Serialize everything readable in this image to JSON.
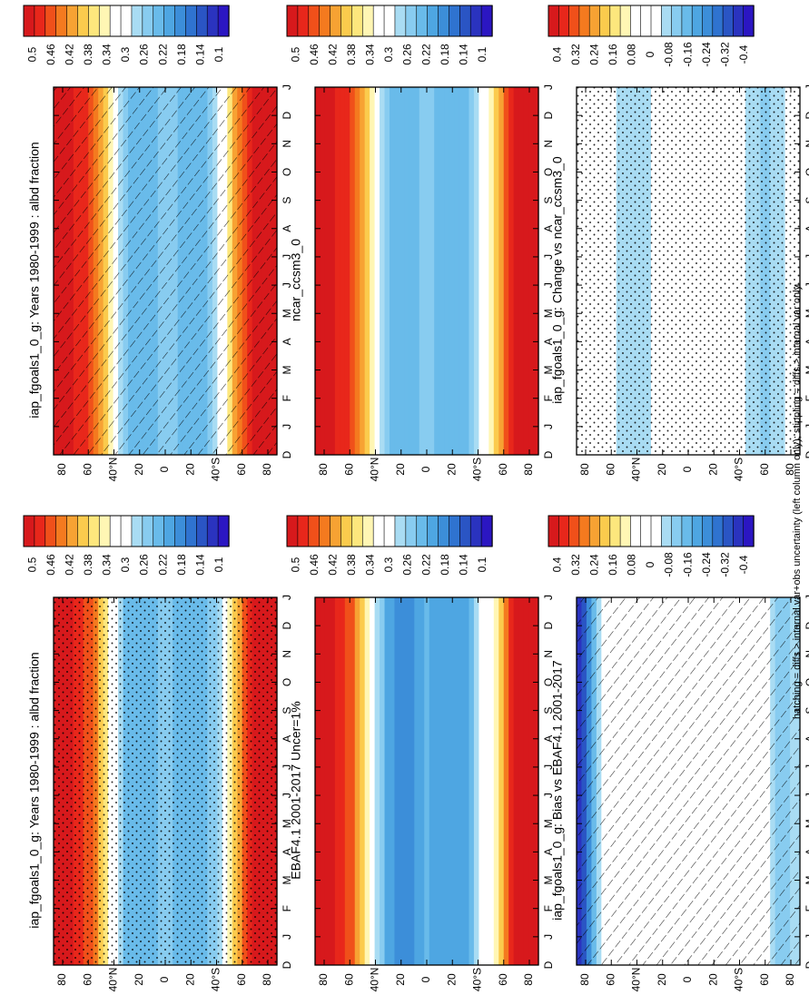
{
  "figure": {
    "footnote": "hatching = diffs > internal var+obs uncertainty (left column only); stippling = diffs > internal var only"
  },
  "chart_data": [
    {
      "id": "model-mean",
      "type": "heatmap",
      "title": "iap_fgoals1_0_g: Years 1980-1999 : albd fraction",
      "x_categories": [
        "D",
        "J",
        "F",
        "M",
        "A",
        "M",
        "J",
        "J",
        "A",
        "S",
        "O",
        "N",
        "D",
        "J"
      ],
      "y_tick_labels": [
        "80",
        "60",
        "40°N",
        "20",
        "0",
        "20",
        "40°S",
        "60",
        "80"
      ],
      "y_range": [
        -90,
        90
      ],
      "colorbar_labels": [
        "0.5",
        "0.46",
        "0.42",
        "0.38",
        "0.34",
        "0.3",
        "0.26",
        "0.22",
        "0.18",
        "0.14",
        "0.1"
      ],
      "colorbar_range": [
        0.08,
        0.52
      ],
      "overlay": "hatching",
      "latitude_profile": [
        [
          -90,
          0.5
        ],
        [
          -70,
          0.5
        ],
        [
          -55,
          0.4
        ],
        [
          -45,
          0.3
        ],
        [
          -30,
          0.22
        ],
        [
          -10,
          0.24
        ],
        [
          0,
          0.26
        ],
        [
          15,
          0.22
        ],
        [
          30,
          0.24
        ],
        [
          45,
          0.36
        ],
        [
          60,
          0.47
        ],
        [
          75,
          0.5
        ],
        [
          90,
          0.5
        ]
      ]
    },
    {
      "id": "model-mean-2",
      "type": "heatmap",
      "title": "iap_fgoals1_0_g: Years 1980-1999 : albd fraction",
      "x_categories": [
        "D",
        "J",
        "F",
        "M",
        "A",
        "M",
        "J",
        "J",
        "A",
        "S",
        "O",
        "N",
        "D",
        "J"
      ],
      "y_tick_labels": [
        "80",
        "60",
        "40°N",
        "20",
        "0",
        "20",
        "40°S",
        "60",
        "80"
      ],
      "y_range": [
        -90,
        90
      ],
      "colorbar_labels": [
        "0.5",
        "0.46",
        "0.42",
        "0.38",
        "0.34",
        "0.3",
        "0.26",
        "0.22",
        "0.18",
        "0.14",
        "0.1"
      ],
      "colorbar_range": [
        0.08,
        0.52
      ],
      "overlay": "stippling",
      "latitude_profile": [
        [
          -90,
          0.5
        ],
        [
          -70,
          0.5
        ],
        [
          -55,
          0.38
        ],
        [
          -45,
          0.28
        ],
        [
          -30,
          0.22
        ],
        [
          -10,
          0.22
        ],
        [
          0,
          0.26
        ],
        [
          15,
          0.22
        ],
        [
          30,
          0.22
        ],
        [
          45,
          0.34
        ],
        [
          60,
          0.46
        ],
        [
          75,
          0.5
        ],
        [
          90,
          0.5
        ]
      ]
    },
    {
      "id": "reference-obs",
      "type": "heatmap",
      "title": "EBAF4.1 2001-2017 Uncer=1%",
      "x_categories": [
        "D",
        "J",
        "F",
        "M",
        "A",
        "M",
        "J",
        "J",
        "A",
        "S",
        "O",
        "N",
        "D",
        "J"
      ],
      "y_tick_labels": [
        "80",
        "60",
        "40°N",
        "20",
        "0",
        "20",
        "40°S",
        "60",
        "80"
      ],
      "y_range": [
        -90,
        90
      ],
      "colorbar_labels": [
        "0.5",
        "0.46",
        "0.42",
        "0.38",
        "0.34",
        "0.3",
        "0.26",
        "0.22",
        "0.18",
        "0.14",
        "0.1"
      ],
      "colorbar_range": [
        0.08,
        0.52
      ],
      "overlay": "none",
      "latitude_profile": [
        [
          -90,
          0.5
        ],
        [
          -70,
          0.5
        ],
        [
          -55,
          0.34
        ],
        [
          -45,
          0.3
        ],
        [
          -30,
          0.2
        ],
        [
          -10,
          0.2
        ],
        [
          0,
          0.22
        ],
        [
          15,
          0.18
        ],
        [
          30,
          0.2
        ],
        [
          45,
          0.32
        ],
        [
          60,
          0.46
        ],
        [
          75,
          0.5
        ],
        [
          90,
          0.5
        ]
      ]
    },
    {
      "id": "reference-model",
      "type": "heatmap",
      "title": "ncar_ccsm3_0",
      "x_categories": [
        "D",
        "J",
        "F",
        "M",
        "A",
        "M",
        "J",
        "J",
        "A",
        "S",
        "O",
        "N",
        "D",
        "J"
      ],
      "y_tick_labels": [
        "80",
        "60",
        "40°N",
        "20",
        "0",
        "20",
        "40°S",
        "60",
        "80"
      ],
      "y_range": [
        -90,
        90
      ],
      "colorbar_labels": [
        "0.5",
        "0.46",
        "0.42",
        "0.38",
        "0.34",
        "0.3",
        "0.26",
        "0.22",
        "0.18",
        "0.14",
        "0.1"
      ],
      "colorbar_range": [
        0.08,
        0.52
      ],
      "overlay": "none",
      "latitude_profile": [
        [
          -90,
          0.5
        ],
        [
          -70,
          0.5
        ],
        [
          -55,
          0.38
        ],
        [
          -45,
          0.3
        ],
        [
          -30,
          0.22
        ],
        [
          -10,
          0.22
        ],
        [
          0,
          0.26
        ],
        [
          15,
          0.22
        ],
        [
          30,
          0.24
        ],
        [
          45,
          0.36
        ],
        [
          60,
          0.47
        ],
        [
          75,
          0.5
        ],
        [
          90,
          0.5
        ]
      ]
    },
    {
      "id": "bias",
      "type": "heatmap",
      "title": "iap_fgoals1_0_g: Bias vs EBAF4.1 2001-2017",
      "x_categories": [
        "D",
        "J",
        "F",
        "M",
        "A",
        "M",
        "J",
        "J",
        "A",
        "S",
        "O",
        "N",
        "D",
        "J"
      ],
      "y_tick_labels": [
        "80",
        "60",
        "40°N",
        "20",
        "0",
        "20",
        "40°S",
        "60",
        "80"
      ],
      "y_range": [
        -90,
        90
      ],
      "colorbar_labels": [
        "0.4",
        "0.32",
        "0.24",
        "0.16",
        "0.08",
        "0",
        "-0.08",
        "-0.16",
        "-0.24",
        "-0.32",
        "-0.4"
      ],
      "colorbar_range": [
        -0.44,
        0.44
      ],
      "overlay": "hatching",
      "latitude_profile": [
        [
          -90,
          -0.04
        ],
        [
          -75,
          -0.12
        ],
        [
          -60,
          0.0
        ],
        [
          -45,
          0.0
        ],
        [
          -30,
          0.02
        ],
        [
          -10,
          0.0
        ],
        [
          0,
          0.04
        ],
        [
          20,
          0.02
        ],
        [
          40,
          -0.02
        ],
        [
          55,
          0.02
        ],
        [
          70,
          0.0
        ],
        [
          82,
          -0.3
        ],
        [
          90,
          -0.4
        ]
      ]
    },
    {
      "id": "change",
      "type": "heatmap",
      "title": "iap_fgoals1_0_g: Change vs ncar_ccsm3_0",
      "x_categories": [
        "D",
        "J",
        "F",
        "M",
        "A",
        "M",
        "J",
        "J",
        "A",
        "S",
        "O",
        "N",
        "D",
        "J"
      ],
      "y_tick_labels": [
        "80",
        "60",
        "40°N",
        "20",
        "0",
        "20",
        "40°S",
        "60",
        "80"
      ],
      "y_range": [
        -90,
        90
      ],
      "colorbar_labels": [
        "0.4",
        "0.32",
        "0.24",
        "0.16",
        "0.08",
        "0",
        "-0.08",
        "-0.16",
        "-0.24",
        "-0.32",
        "-0.4"
      ],
      "colorbar_range": [
        -0.44,
        0.44
      ],
      "overlay": "stippling",
      "latitude_profile": [
        [
          -90,
          0.0
        ],
        [
          -75,
          -0.06
        ],
        [
          -60,
          -0.1
        ],
        [
          -45,
          -0.04
        ],
        [
          -30,
          0.0
        ],
        [
          -10,
          0.0
        ],
        [
          0,
          0.0
        ],
        [
          20,
          0.0
        ],
        [
          40,
          -0.08
        ],
        [
          55,
          -0.06
        ],
        [
          70,
          0.0
        ],
        [
          82,
          0.02
        ],
        [
          90,
          0.0
        ]
      ]
    }
  ]
}
